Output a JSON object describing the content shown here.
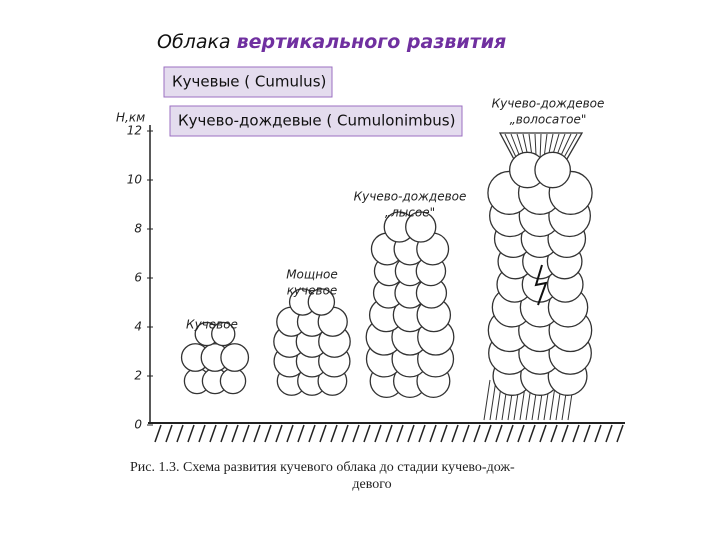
{
  "title": {
    "prefix": "Облака",
    "emphasis": "вертикального развития"
  },
  "legend": {
    "cumulus": "Кучевые ( Cumulus)",
    "cumulonimbus": "Кучево-дождевые ( Cumulonimbus)"
  },
  "axis": {
    "label": "Н,км",
    "ticks": [
      0,
      2,
      4,
      6,
      8,
      10,
      12
    ]
  },
  "clouds": [
    {
      "label": [
        "Кучевое"
      ]
    },
    {
      "label": [
        "Мощное",
        "кучевое"
      ]
    },
    {
      "label": [
        "Кучево-дождевое",
        "„лысое\""
      ]
    },
    {
      "label": [
        "Кучево-дождевое",
        "„волосатое\""
      ]
    }
  ],
  "caption": [
    "Рис. 1.3. Схема развития кучевого облака до стадии кучево-дож-",
    "девого"
  ]
}
